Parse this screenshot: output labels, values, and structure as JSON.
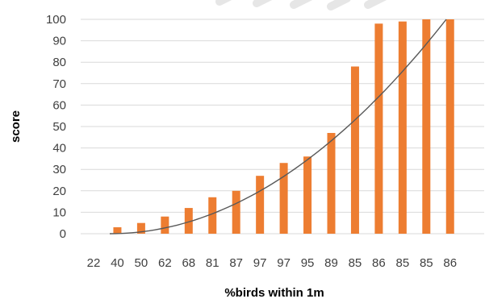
{
  "chart_data": {
    "type": "bar",
    "xlabel": "%birds within 1m",
    "ylabel": "score",
    "categories": [
      "22",
      "40",
      "50",
      "62",
      "68",
      "81",
      "87",
      "97",
      "97",
      "95",
      "89",
      "85",
      "86",
      "85",
      "85",
      "86"
    ],
    "series": [
      {
        "values": [
          0,
          3,
          5,
          8,
          12,
          17,
          20,
          27,
          33,
          36,
          47,
          78,
          98,
          99,
          100,
          100
        ]
      }
    ],
    "trendline": {
      "type": "polynomial",
      "start_y": 0,
      "end_y": 100
    },
    "ylim": [
      0,
      100
    ],
    "yticks": [
      0,
      10,
      20,
      30,
      40,
      50,
      60,
      70,
      80,
      90,
      100
    ],
    "grid": true,
    "legend": "none",
    "colors": {
      "bar": "#ED7D31",
      "trend": "#595959",
      "grid": "#d9d9d9",
      "text": "#404040"
    }
  }
}
